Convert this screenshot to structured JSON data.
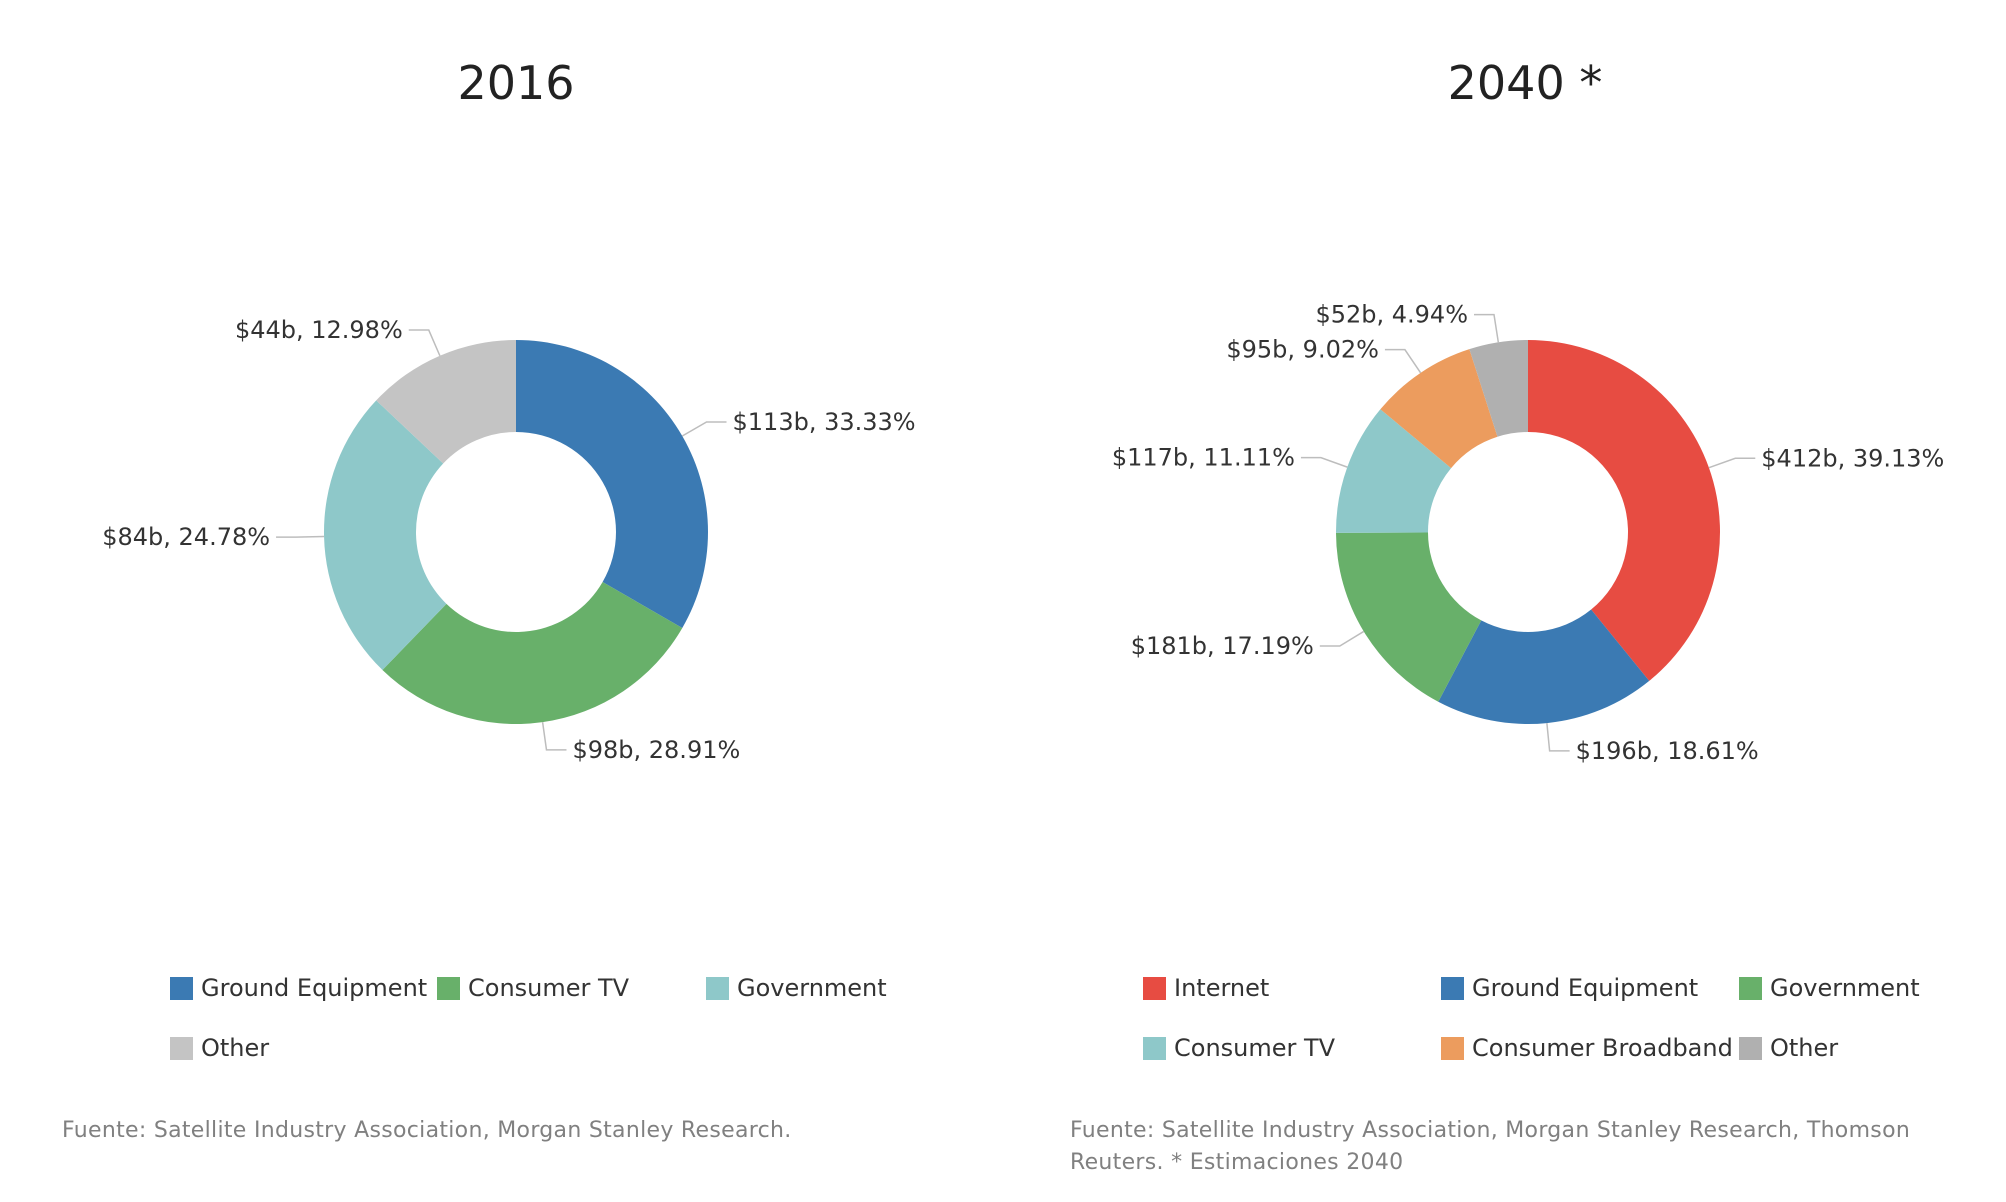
{
  "chart_data": [
    {
      "type": "donut",
      "title": "2016",
      "categories": [
        "Ground Equipment",
        "Consumer TV",
        "Government",
        "Other"
      ],
      "values": [
        113,
        98,
        84,
        44
      ],
      "percentages": [
        33.33,
        28.91,
        24.78,
        12.98
      ],
      "slice_labels": [
        "$113b, 33.33%",
        "$98b, 28.91%",
        "$84b, 24.78%",
        "$44b, 12.98%"
      ],
      "colors": [
        "#3b7ab3",
        "#68b06a",
        "#8ec8c9",
        "#c4c4c4"
      ],
      "legend": {
        "placement": "bottom",
        "entries": [
          "Ground Equipment",
          "Consumer TV",
          "Government",
          "Other"
        ]
      },
      "source": "Fuente: Satellite Industry Association, Morgan Stanley Research."
    },
    {
      "type": "donut",
      "title": "2040 *",
      "categories": [
        "Internet",
        "Ground Equipment",
        "Government",
        "Consumer TV",
        "Consumer Broadband",
        "Other"
      ],
      "values": [
        412,
        196,
        181,
        117,
        95,
        52
      ],
      "percentages": [
        39.13,
        18.61,
        17.19,
        11.11,
        9.02,
        4.94
      ],
      "slice_labels": [
        "$412b, 39.13%",
        "$196b, 18.61%",
        "$181b, 17.19%",
        "$117b, 11.11%",
        "$95b, 9.02%",
        "$52b, 4.94%"
      ],
      "colors": [
        "#e74c42",
        "#3b7ab3",
        "#68b06a",
        "#8ec8c9",
        "#ec9c5e",
        "#b0b0b0"
      ],
      "legend": {
        "placement": "bottom",
        "entries": [
          "Internet",
          "Ground Equipment",
          "Government",
          "Consumer TV",
          "Consumer Broadband",
          "Other"
        ]
      },
      "source_lines": [
        "Fuente: Satellite Industry Association, Morgan Stanley Research, Thomson",
        "Reuters. * Estimaciones 2040"
      ]
    }
  ]
}
